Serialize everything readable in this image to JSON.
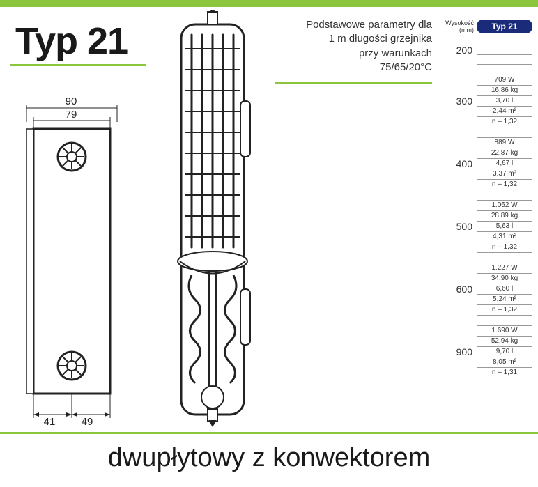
{
  "title": "Typ 21",
  "param_text": {
    "line1": "Podstawowe parametry dla",
    "line2": "1 m długości grzejnika",
    "line3": "przy warunkach",
    "line4": "75/65/20°C"
  },
  "table": {
    "header_wys": "Wysokość (mm)",
    "header_typ": "Typ 21",
    "header_bg": "#1a2b7a",
    "header_fg": "#ffffff",
    "groups": [
      {
        "height": "200",
        "cells": [
          "",
          "",
          ""
        ]
      },
      {
        "height": "300",
        "cells": [
          "709 W",
          "16,86 kg",
          "3,70 l",
          "2,44 m²",
          "n – 1,32"
        ]
      },
      {
        "height": "400",
        "cells": [
          "889 W",
          "22,87 kg",
          "4,67 l",
          "3,37 m²",
          "n – 1,32"
        ]
      },
      {
        "height": "500",
        "cells": [
          "1.062 W",
          "28,89 kg",
          "5,63 l",
          "4,31 m²",
          "n – 1,32"
        ]
      },
      {
        "height": "600",
        "cells": [
          "1.227 W",
          "34,90 kg",
          "6,60 l",
          "5,24 m²",
          "n – 1,32"
        ]
      },
      {
        "height": "900",
        "cells": [
          "1.690 W",
          "52,94 kg",
          "9,70 l",
          "8,05 m²",
          "n – 1,31"
        ]
      }
    ]
  },
  "side_dims": {
    "top_outer": "90",
    "top_inner": "79",
    "bottom_left": "41",
    "bottom_right": "49"
  },
  "caption": "dwupłytowy z konwektorem",
  "colors": {
    "accent": "#8cc63f",
    "stroke": "#222222",
    "bg": "#ffffff"
  },
  "diagrams": {
    "side_view": {
      "type": "technical-drawing",
      "description": "Radiator side profile with two valve fittings top and bottom",
      "width_mm_outer": 90,
      "width_mm_inner": 79,
      "bottom_split_mm": [
        41,
        49
      ],
      "stroke": "#222222",
      "stroke_width": 2
    },
    "cutaway": {
      "type": "technical-drawing",
      "description": "Top-grille cutaway showing convector fins and internal coil",
      "stroke": "#222222",
      "stroke_width": 1.5
    }
  }
}
